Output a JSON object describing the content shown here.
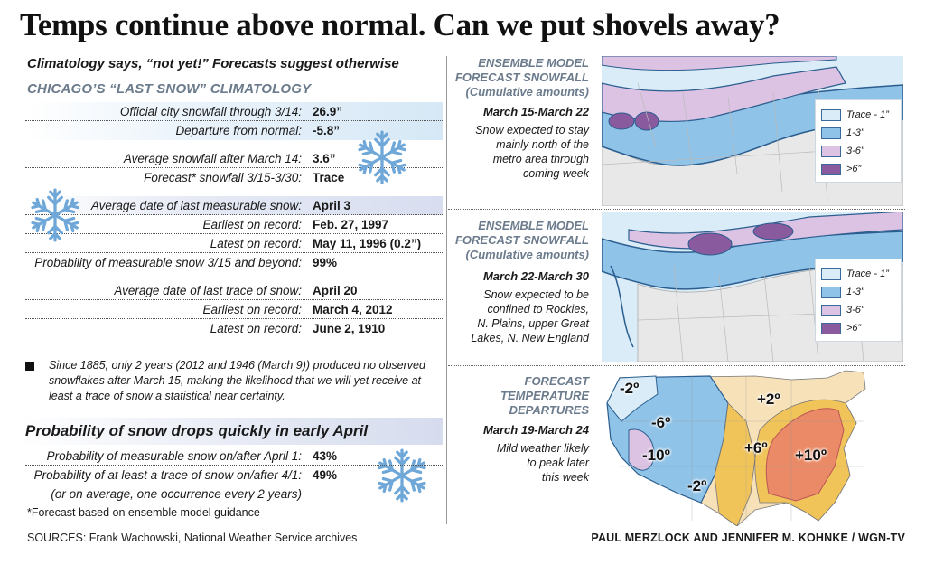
{
  "title": "Temps continue above normal. Can we put shovels away?",
  "subtitle": "Climatology says, “not yet!” Forecasts suggest otherwise",
  "climatology": {
    "heading": "CHICAGO’S “LAST SNOW” CLIMATOLOGY",
    "rows": [
      {
        "label": "Official city snowfall through 3/14:",
        "value": "26.9”"
      },
      {
        "label": "Departure from normal:",
        "value": "-5.8”"
      },
      {
        "label": "Average snowfall after March 14:",
        "value": "3.6”"
      },
      {
        "label": "Forecast* snowfall 3/15-3/30:",
        "value": "Trace"
      },
      {
        "label": "Average date of last measurable snow:",
        "value": "April 3"
      },
      {
        "label": "Earliest on record:",
        "value": "Feb. 27, 1997"
      },
      {
        "label": "Latest on record:",
        "value": "May 11, 1996 (0.2”)"
      },
      {
        "label": "Probability of measurable snow 3/15 and beyond:",
        "value": "99%"
      },
      {
        "label": "Average date of last trace of snow:",
        "value": "April 20"
      },
      {
        "label": "Earliest on record:",
        "value": "March 4, 2012"
      },
      {
        "label": "Latest on record:",
        "value": "June 2, 1910"
      }
    ],
    "note": "Since 1885, only 2 years (2012 and 1946 (March 9)) produced no observed snowflakes after March 15, making the likelihood that we will yet receive at least a trace of snow a statistical near certainty."
  },
  "probability": {
    "heading": "Probability of snow drops quickly in early April",
    "rows": [
      {
        "label": "Probability of measurable snow on/after April 1:",
        "value": "43%"
      },
      {
        "label": "Probability of at least a trace of snow on/after 4/1:",
        "value": "49%"
      }
    ],
    "sub": "(or on average, one occurrence every 2 years)"
  },
  "footnote": "*Forecast based on ensemble model guidance",
  "sources": "SOURCES: Frank Wachowski, National Weather Service archives",
  "credit": "PAUL MERZLOCK AND JENNIFER M. KOHNKE / WGN-TV",
  "panels": [
    {
      "title_lines": [
        "ENSEMBLE MODEL",
        "FORECAST SNOWFALL",
        "(Cumulative amounts)"
      ],
      "date": "March 15-March 22",
      "desc_lines": [
        "Snow expected to stay",
        "mainly north of the",
        "metro area through",
        "coming week"
      ],
      "legend": [
        "Trace - 1”",
        "1-3”",
        "3-6”",
        ">6”"
      ]
    },
    {
      "title_lines": [
        "ENSEMBLE MODEL",
        "FORECAST SNOWFALL",
        "(Cumulative amounts)"
      ],
      "date": "March 22-March 30",
      "desc_lines": [
        "Snow expected to be",
        "confined to Rockies,",
        "N. Plains, upper Great",
        "Lakes, N. New England"
      ],
      "legend": [
        "Trace - 1”",
        "1-3”",
        "3-6”",
        ">6”"
      ]
    },
    {
      "title_lines": [
        "FORECAST",
        "TEMPERATURE",
        "DEPARTURES"
      ],
      "date": "March 19-March 24",
      "desc_lines": [
        "Mild weather likely",
        "to peak later",
        "this week"
      ],
      "temp_labels": [
        "-2º",
        "-6º",
        "-10º",
        "-2º",
        "+2º",
        "+6º",
        "+10º"
      ]
    }
  ],
  "colors": {
    "trace": "#d9ecf8",
    "one_three": "#8fc3e8",
    "three_six": "#dcc3e4",
    "six_plus": "#8a5a9e",
    "warm_light": "#f7e1b8",
    "warm_mid": "#f1c45a",
    "warm_hot": "#ea8a66"
  }
}
